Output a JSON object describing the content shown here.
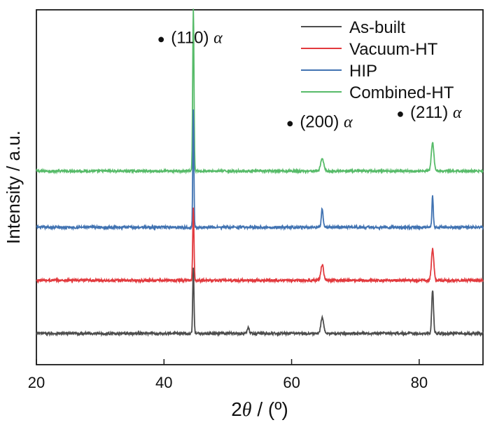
{
  "chart_data": {
    "type": "line",
    "xlabel_prefix": "2",
    "xlabel_theta": "θ",
    "xlabel_suffix": " / (º)",
    "ylabel": "Intensity / a.u.",
    "xlim": [
      20,
      90
    ],
    "xticks": [
      "20",
      "40",
      "60",
      "80"
    ],
    "yticks_shown": false,
    "legend_position": "top-right",
    "series": [
      {
        "name": "Combined-HT",
        "color": "#57bb69",
        "baseline": 0.62,
        "noise": 0.007,
        "peaks": [
          {
            "x": 44.6,
            "height": 0.52,
            "width": 0.14
          },
          {
            "x": 64.8,
            "height": 0.04,
            "width": 0.35
          },
          {
            "x": 82.1,
            "height": 0.09,
            "width": 0.28
          }
        ]
      },
      {
        "name": "HIP",
        "color": "#4173b2",
        "baseline": 0.44,
        "noise": 0.008,
        "peaks": [
          {
            "x": 44.6,
            "height": 0.38,
            "width": 0.12
          },
          {
            "x": 64.8,
            "height": 0.06,
            "width": 0.2
          },
          {
            "x": 82.1,
            "height": 0.1,
            "width": 0.15
          }
        ]
      },
      {
        "name": "Vacuum-HT",
        "color": "#e23a3e",
        "baseline": 0.27,
        "noise": 0.008,
        "peaks": [
          {
            "x": 44.6,
            "height": 0.23,
            "width": 0.14
          },
          {
            "x": 64.8,
            "height": 0.05,
            "width": 0.3
          },
          {
            "x": 82.1,
            "height": 0.1,
            "width": 0.26
          }
        ]
      },
      {
        "name": "As-built",
        "color": "#4d4d4d",
        "baseline": 0.1,
        "noise": 0.008,
        "peaks": [
          {
            "x": 44.6,
            "height": 0.21,
            "width": 0.14
          },
          {
            "x": 53.2,
            "height": 0.02,
            "width": 0.2
          },
          {
            "x": 64.8,
            "height": 0.05,
            "width": 0.3
          },
          {
            "x": 82.1,
            "height": 0.14,
            "width": 0.2
          }
        ]
      }
    ],
    "legend": [
      {
        "label": "As-built",
        "color": "#4d4d4d"
      },
      {
        "label": "Vacuum-HT",
        "color": "#e23a3e"
      },
      {
        "label": "HIP",
        "color": "#4173b2"
      },
      {
        "label": "Combined-HT",
        "color": "#57bb69"
      }
    ],
    "annotations": [
      {
        "marker": "●",
        "plane": "(110)",
        "phase": "α",
        "x": 44.6,
        "y": 1.03
      },
      {
        "marker": "●",
        "plane": "(200)",
        "phase": "α",
        "x": 64.8,
        "y": 0.76
      },
      {
        "marker": "●",
        "plane": "(211)",
        "phase": "α",
        "x": 82.1,
        "y": 0.79
      }
    ]
  }
}
